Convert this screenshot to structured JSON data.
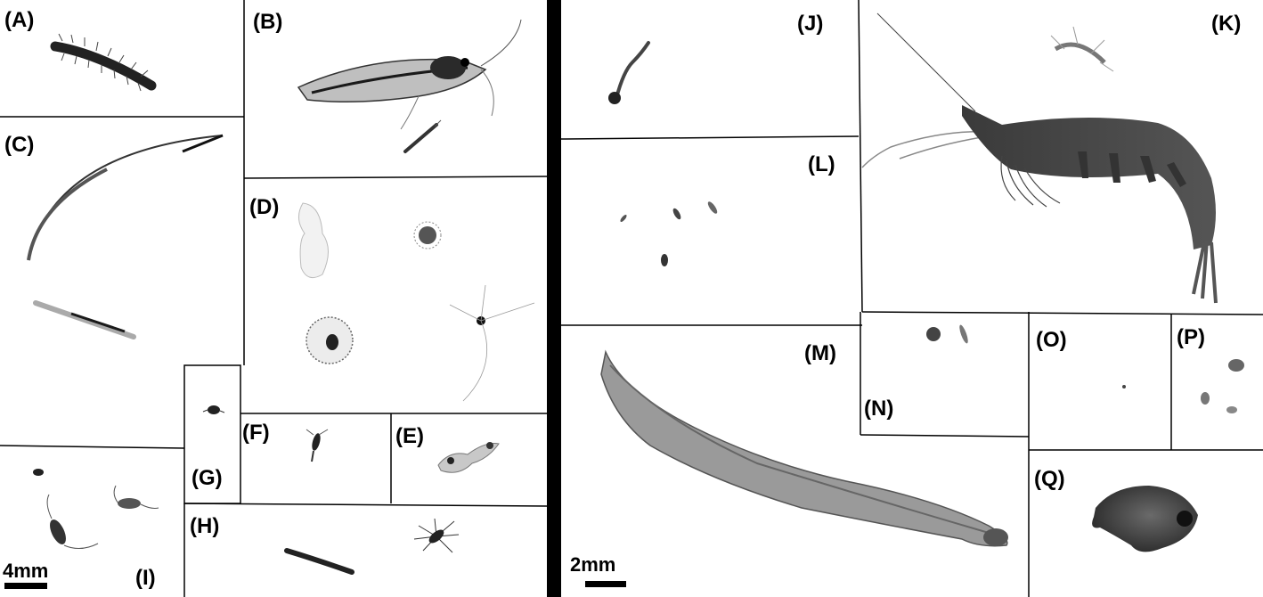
{
  "panels": [
    {
      "id": "A",
      "label": "(A)"
    },
    {
      "id": "B",
      "label": "(B)"
    },
    {
      "id": "C",
      "label": "(C)"
    },
    {
      "id": "D",
      "label": "(D)"
    },
    {
      "id": "E",
      "label": "(E)"
    },
    {
      "id": "F",
      "label": "(F)"
    },
    {
      "id": "G",
      "label": "(G)"
    },
    {
      "id": "H",
      "label": "(H)"
    },
    {
      "id": "I",
      "label": "(I)"
    },
    {
      "id": "J",
      "label": "(J)"
    },
    {
      "id": "K",
      "label": "(K)"
    },
    {
      "id": "L",
      "label": "(L)"
    },
    {
      "id": "M",
      "label": "(M)"
    },
    {
      "id": "N",
      "label": "(N)"
    },
    {
      "id": "O",
      "label": "(O)"
    },
    {
      "id": "P",
      "label": "(P)"
    },
    {
      "id": "Q",
      "label": "(Q)"
    }
  ],
  "scale_bars": {
    "left": "4mm",
    "right": "2mm"
  },
  "colors": {
    "background": "#ffffff",
    "lines": "#000000",
    "organism_dark": "#222222",
    "organism_mid": "#555555",
    "organism_light": "#9a9a9a"
  }
}
